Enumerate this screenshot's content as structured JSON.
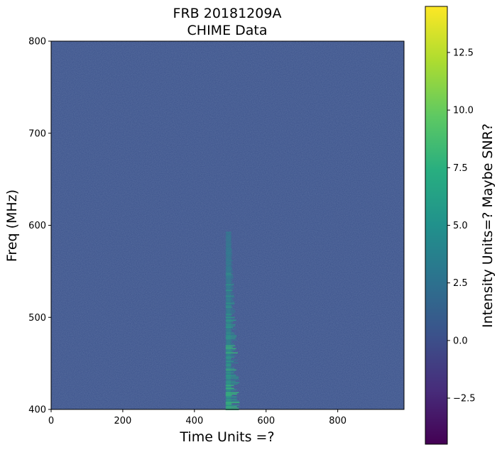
{
  "chart_data": {
    "type": "heatmap",
    "title_line1": "FRB 20181209A",
    "title_line2": "CHIME Data",
    "xlabel": "Time Units =?",
    "ylabel": "Freq (MHz)",
    "colorbar_label": "Intensity Units=? Maybe SNR?",
    "xlim": [
      0,
      985
    ],
    "ylim": [
      400,
      800
    ],
    "xticks": [
      0,
      200,
      400,
      600,
      800
    ],
    "yticks": [
      400,
      500,
      600,
      700,
      800
    ],
    "colorbar_range": [
      -4.5,
      14.5
    ],
    "colorbar_ticks": [
      -2.5,
      0.0,
      2.5,
      5.0,
      7.5,
      10.0,
      12.5
    ],
    "colormap": "viridis",
    "background_value": 0.0,
    "burst": {
      "time_center": 495,
      "time_width": 12,
      "freq_min": 400,
      "freq_max": 593,
      "peak_value": 5.0
    }
  },
  "colors": {
    "viridis_low": "#440154",
    "viridis_mid": "#21918c",
    "viridis_high": "#fde725",
    "background_field": "#3b528b"
  },
  "tick_text": {
    "x": [
      "0",
      "200",
      "400",
      "600",
      "800"
    ],
    "y": [
      "400",
      "500",
      "600",
      "700",
      "800"
    ],
    "cbar": [
      "−2.5",
      "0.0",
      "2.5",
      "5.0",
      "7.5",
      "10.0",
      "12.5"
    ]
  }
}
